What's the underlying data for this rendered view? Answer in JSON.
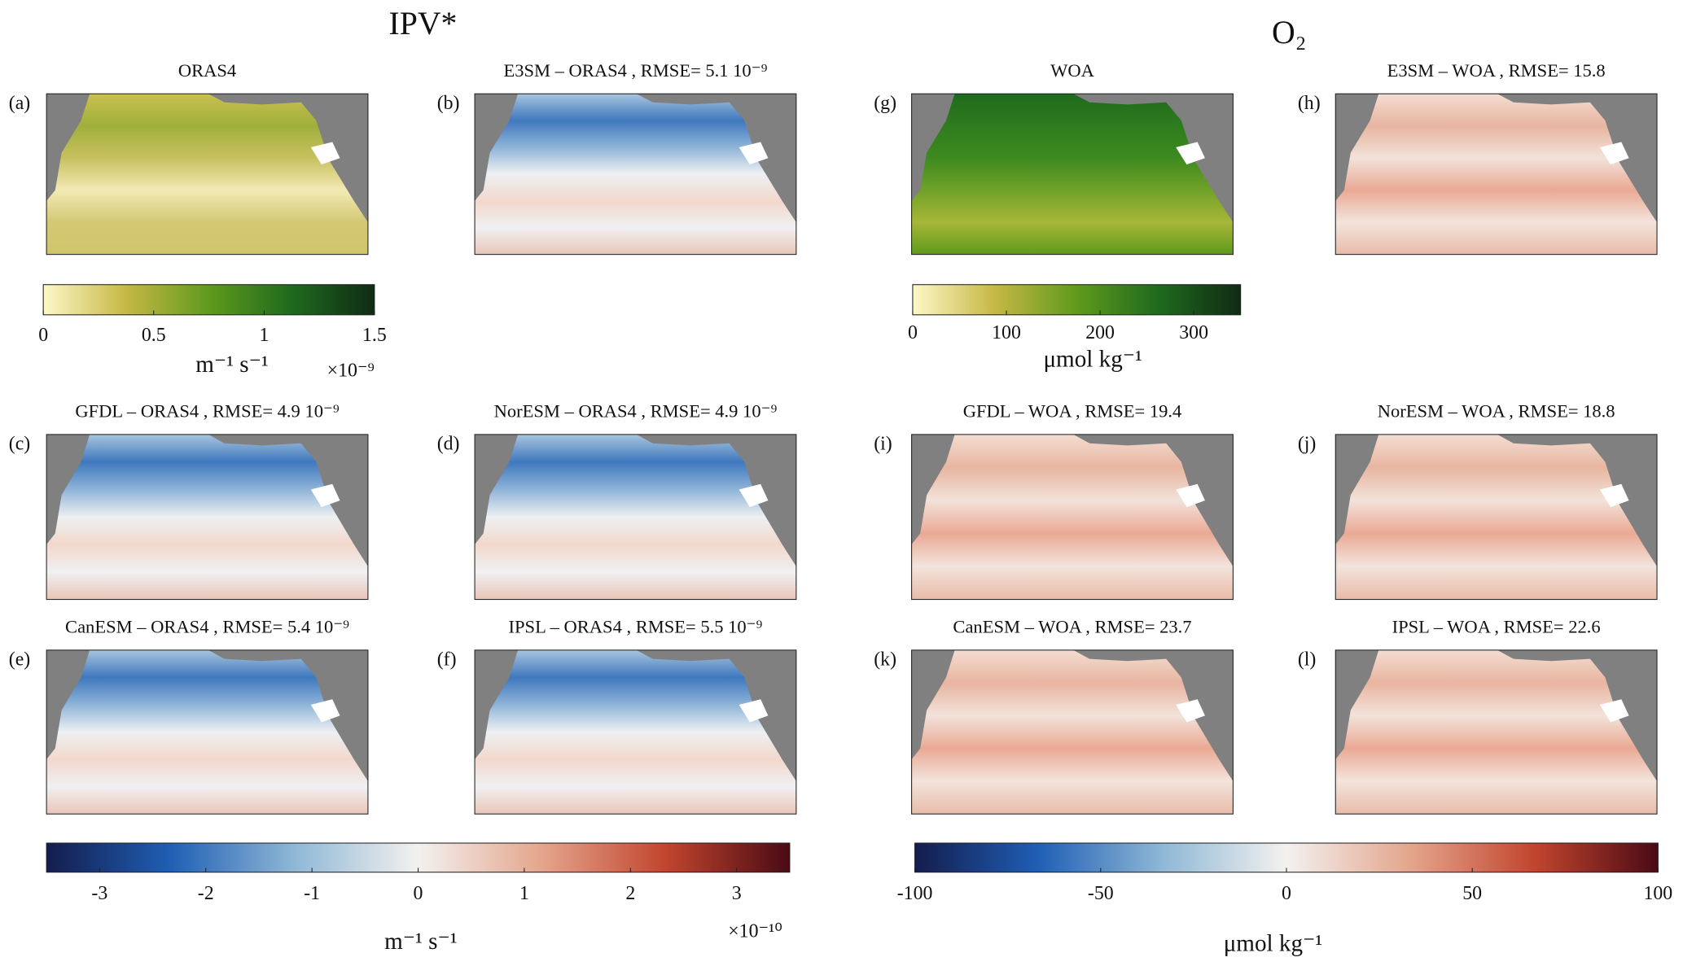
{
  "titles": {
    "left": "IPV*",
    "right": "O₂"
  },
  "panels": [
    {
      "letter": "(a)",
      "title": "ORAS4"
    },
    {
      "letter": "(b)",
      "title": "E3SM – ORAS4 , RMSE= 5.1 10⁻⁹"
    },
    {
      "letter": "(g)",
      "title": "WOA"
    },
    {
      "letter": "(h)",
      "title": "E3SM – WOA , RMSE= 15.8"
    },
    {
      "letter": "(c)",
      "title": "GFDL – ORAS4 , RMSE= 4.9 10⁻⁹"
    },
    {
      "letter": "(d)",
      "title": "NorESM – ORAS4 , RMSE= 4.9 10⁻⁹"
    },
    {
      "letter": "(i)",
      "title": "GFDL – WOA , RMSE= 19.4"
    },
    {
      "letter": "(j)",
      "title": "NorESM – WOA , RMSE= 18.8"
    },
    {
      "letter": "(e)",
      "title": "CanESM – ORAS4 , RMSE= 5.4 10⁻⁹"
    },
    {
      "letter": "(f)",
      "title": "IPSL – ORAS4 , RMSE= 5.5 10⁻⁹"
    },
    {
      "letter": "(k)",
      "title": "CanESM – WOA , RMSE= 23.7"
    },
    {
      "letter": "(l)",
      "title": "IPSL – WOA , RMSE= 22.6"
    }
  ],
  "colorbars": [
    {
      "lim": [
        0,
        1.5
      ],
      "ticks": [
        0,
        0.5,
        1,
        1.5
      ],
      "label": "m⁻¹ s⁻¹",
      "multiplier": "×10⁻⁹",
      "colors": [
        "#fdf8c8",
        "#c6b845",
        "#5f9a1c",
        "#1f6a1e",
        "#102a14"
      ]
    },
    {
      "lim": [
        0,
        350
      ],
      "ticks": [
        0,
        100,
        200,
        300
      ],
      "label": "μmol kg⁻¹",
      "colors": [
        "#fdf8c8",
        "#c6b845",
        "#5f9a1c",
        "#1f6a1e",
        "#102a14"
      ]
    },
    {
      "lim": [
        -3.5,
        3.5
      ],
      "ticks": [
        -3,
        -2,
        -1,
        0,
        1,
        2,
        3
      ],
      "label": "m⁻¹ s⁻¹",
      "multiplier": "×10⁻¹⁰",
      "colors": [
        "#141c4e",
        "#1f5fb4",
        "#8fb8d6",
        "#f3f1ef",
        "#e4a58c",
        "#c2452e",
        "#4a0a14"
      ]
    },
    {
      "lim": [
        -100,
        100
      ],
      "ticks": [
        -100,
        -50,
        0,
        50,
        100
      ],
      "label": "μmol kg⁻¹",
      "colors": [
        "#141c4e",
        "#1f5fb4",
        "#8fb8d6",
        "#f3f1ef",
        "#e4a58c",
        "#c2452e",
        "#4a0a14"
      ]
    }
  ]
}
